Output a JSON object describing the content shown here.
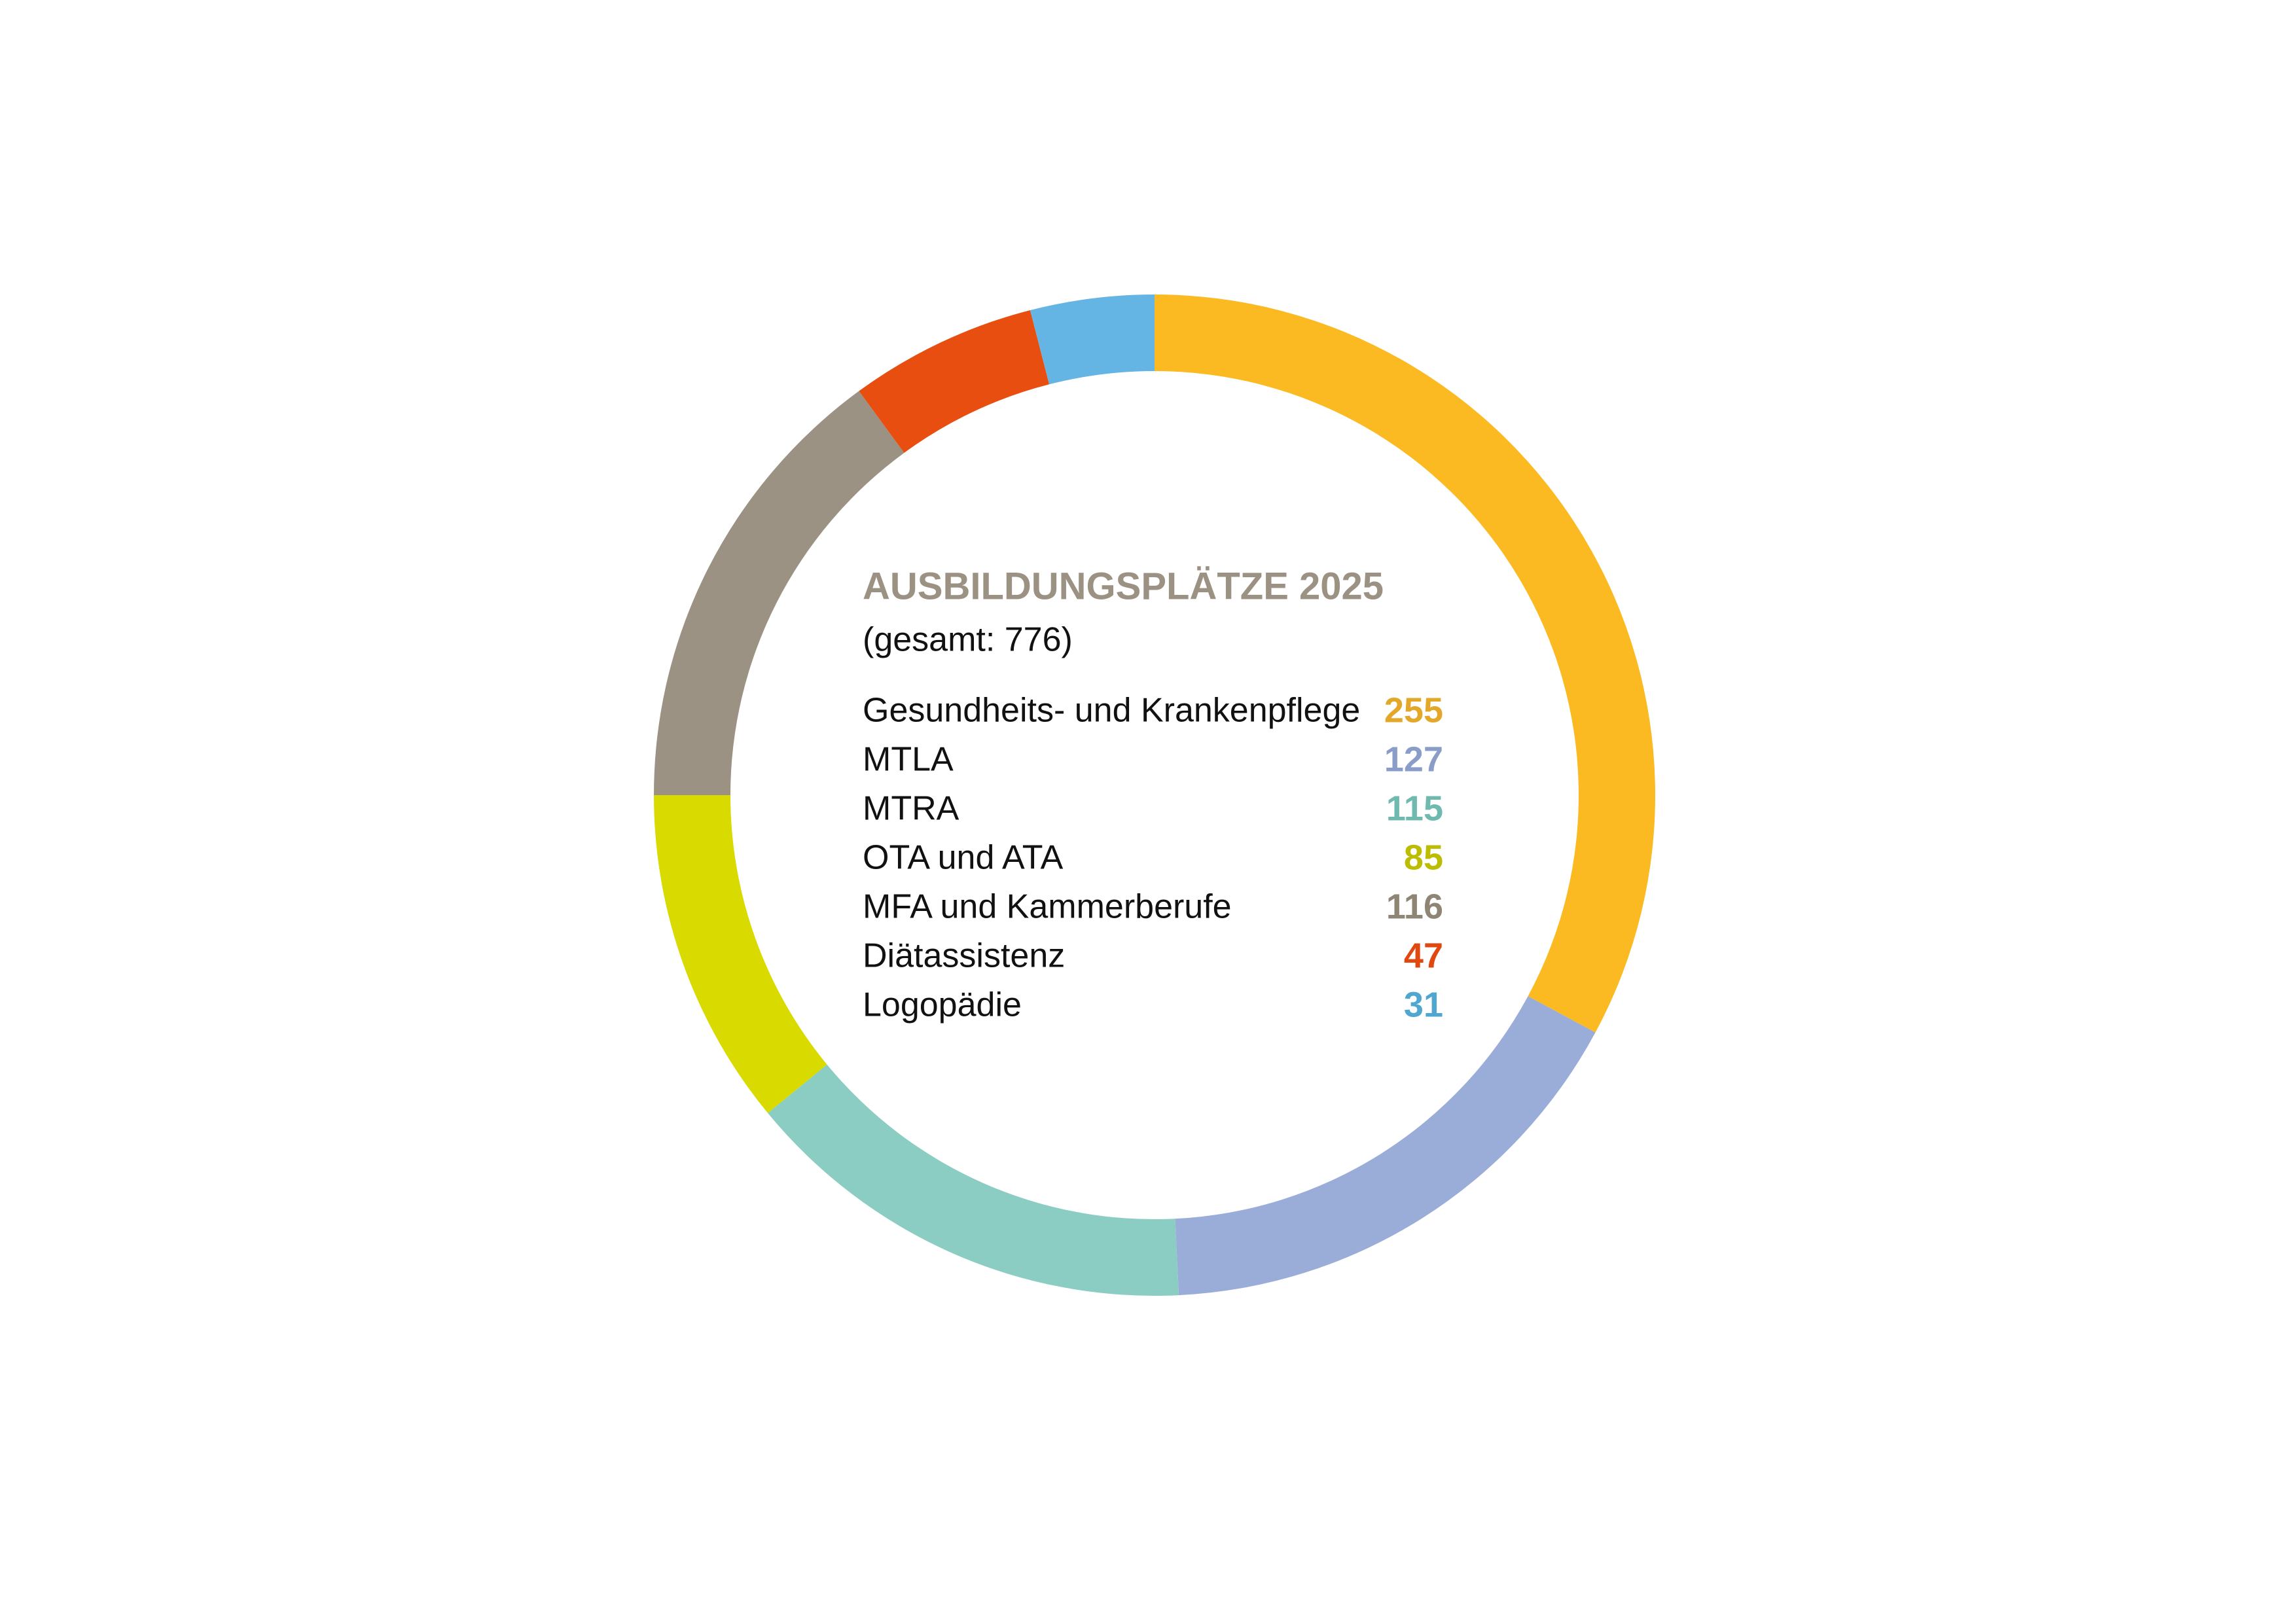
{
  "chart_data": {
    "type": "donut",
    "title": "AUSBILDUNGSPLÄTZE 2025",
    "subtitle": "(gesamt: 776)",
    "categories": [
      "Gesundheits- und Krankenpflege",
      "MTLA",
      "MTRA",
      "OTA und ATA",
      "MFA und Kammerberufe",
      "Diätassistenz",
      "Logopädie"
    ],
    "values": [
      255,
      127,
      115,
      85,
      116,
      47,
      31
    ],
    "colors": [
      "#fbba22",
      "#9aacd8",
      "#8bcdc3",
      "#d8da00",
      "#9b9283",
      "#e84e10",
      "#65b5e4"
    ],
    "label_colors": [
      "#e3a82a",
      "#8a9cc8",
      "#6fb9ae",
      "#bcbd00",
      "#8f8574",
      "#e0480f",
      "#4fa6d0"
    ],
    "title_color": "#9b9283"
  }
}
